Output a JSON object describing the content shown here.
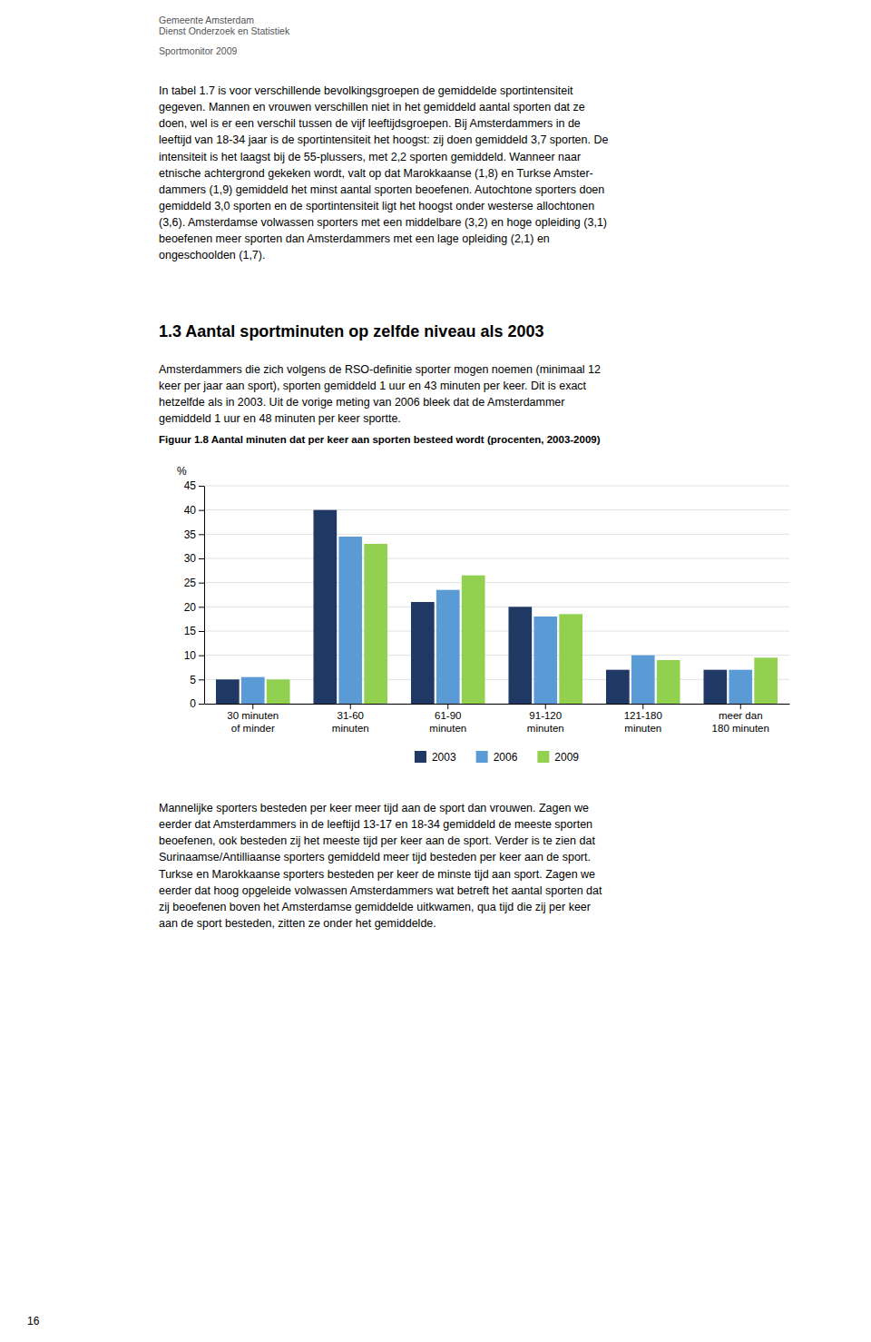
{
  "header": [
    "Gemeente Amsterdam",
    "Dienst Onderzoek en Statistiek",
    "Sportmonitor 2009"
  ],
  "para1": "In tabel 1.7 is voor verschillende bevolkingsgroepen de gemiddelde sportintensiteit\ngegeven. Mannen en vrouwen verschillen niet in het gemiddeld aantal sporten dat ze\ndoen, wel is er een verschil tussen de vijf leeftijdsgroepen. Bij Amsterdammers in de\nleeftijd van 18-34 jaar is de sportintensiteit het hoogst: zij doen gemiddeld 3,7 sporten. De\nintensiteit is het laagst bij de 55-plussers, met 2,2 sporten gemiddeld. Wanneer naar\netnische achtergrond gekeken wordt, valt op dat Marokkaanse (1,8) en Turkse Amster-\ndammers (1,9) gemiddeld het minst aantal sporten beoefenen. Autochtone sporters doen\ngemiddeld 3,0 sporten en de sportintensiteit ligt het hoogst onder westerse allochtonen\n(3,6). Amsterdamse volwassen sporters met een middelbare (3,2) en hoge opleiding (3,1)\nbeoefenen meer sporten dan Amsterdammers met een lage opleiding (2,1) en\nongeschoolden (1,7).",
  "section_heading": "1.3  Aantal sportminuten op zelfde niveau als 2003",
  "para2": "Amsterdammers die zich volgens de RSO-definitie sporter mogen noemen (minimaal 12\nkeer per jaar aan sport), sporten gemiddeld 1 uur en 43 minuten per keer. Dit is exact\nhetzelfde als in 2003. Uit de vorige meting van 2006 bleek dat de Amsterdammer\ngemiddeld 1 uur en 48 minuten per keer sportte.",
  "para3": "Mannelijke sporters besteden per keer meer tijd aan de sport dan vrouwen. Zagen we\neerder dat Amsterdammers in de leeftijd 13-17 en 18-34 gemiddeld de meeste sporten\nbeoefenen, ook besteden zij het meeste tijd per keer aan de sport. Verder is te zien dat\nSurinaamse/Antilliaanse sporters gemiddeld meer tijd besteden per keer aan de sport.\nTurkse en Marokkaanse sporters besteden per keer de minste tijd aan sport. Zagen we\neerder dat hoog opgeleide volwassen Amsterdammers wat betreft het aantal sporten dat\nzij beoefenen boven het Amsterdamse gemiddelde uitkwamen, qua tijd die zij per keer\naan de sport besteden, zitten ze onder het gemiddelde.",
  "page_number": "16",
  "chart_data": {
    "type": "bar",
    "title": "Figuur 1.8  Aantal minuten dat per keer aan sporten besteed wordt (procenten, 2003-2009)",
    "y_label": "%",
    "categories": [
      "30 minuten\nof minder",
      "31-60\nminuten",
      "61-90\nminuten",
      "91-120\nminuten",
      "121-180\nminuten",
      "meer dan\n180 minuten"
    ],
    "series": [
      {
        "name": "2003",
        "color": "#1f3864",
        "values": [
          5,
          40,
          21,
          20,
          7,
          7
        ]
      },
      {
        "name": "2006",
        "color": "#5b9bd5",
        "values": [
          5.5,
          34.5,
          23.5,
          18,
          10,
          7
        ]
      },
      {
        "name": "2009",
        "color": "#92d050",
        "values": [
          5,
          33,
          26.5,
          18.5,
          9,
          9.5
        ]
      }
    ],
    "ylim": [
      0,
      45
    ],
    "yticks": [
      0,
      5,
      10,
      15,
      20,
      25,
      30,
      35,
      40,
      45
    ],
    "grid": true,
    "legend": "bottom"
  }
}
